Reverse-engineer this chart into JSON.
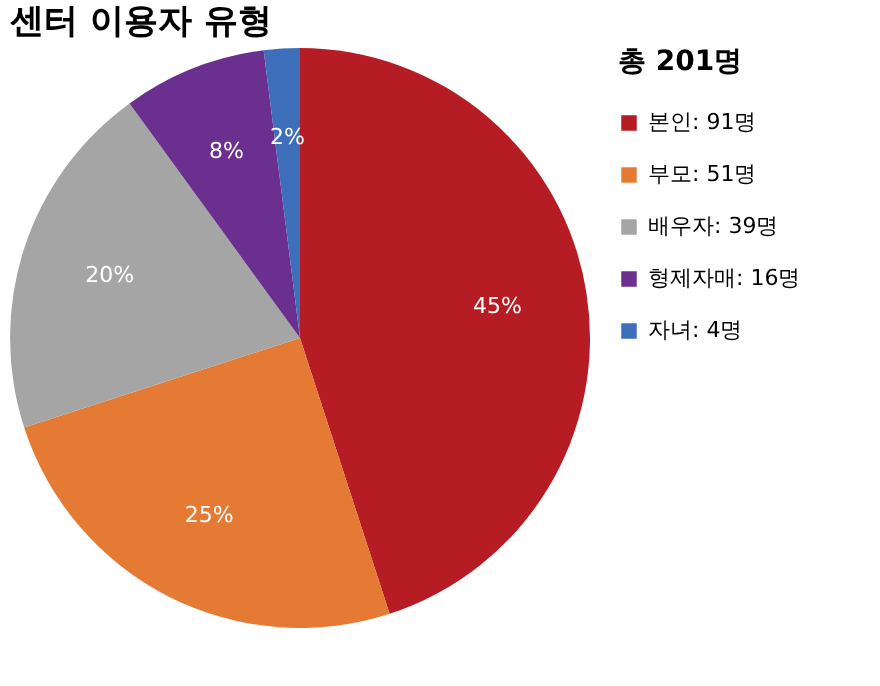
{
  "chart_data": {
    "type": "pie",
    "title": "센터 이용자 유형",
    "legend_title": "총 201명",
    "categories": [
      "본인: 91명",
      "부모: 51명",
      "배우자: 39명",
      "형제자매: 16명",
      "자녀: 4명"
    ],
    "values": [
      45,
      25,
      20,
      8,
      2
    ],
    "value_labels": [
      "45%",
      "25%",
      "20%",
      "8%",
      "2%"
    ],
    "colors": [
      "#b51c24",
      "#e47a33",
      "#a5a5a5",
      "#6a2f8f",
      "#3d6fba"
    ],
    "legend": "right"
  }
}
